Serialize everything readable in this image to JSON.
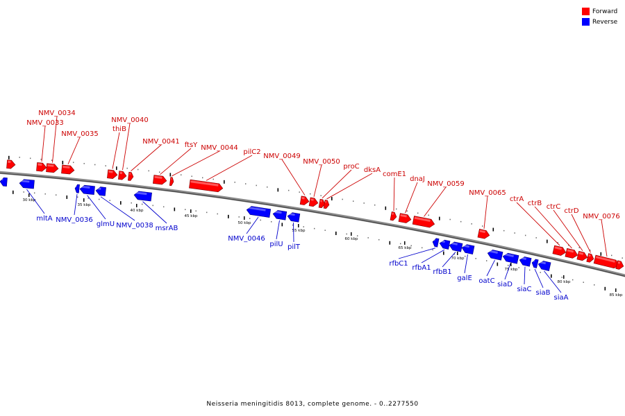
{
  "title": "Neisseria meningitidis 8013, complete genome. - 0..2277550",
  "legend": {
    "forward": {
      "label": "Forward",
      "color": "#ff0000"
    },
    "reverse": {
      "label": "Reverse",
      "color": "#0000ff"
    }
  },
  "colors": {
    "forward_label": "#cc0000",
    "reverse_label": "#0000cc",
    "backbone": "#555555"
  },
  "scale_labels": [
    "30 kbp",
    "35 kbp",
    "40 kbp",
    "45 kbp",
    "50 kbp",
    "55 kbp",
    "60 kbp",
    "65 kbp",
    "70 kbp",
    "75 kbp",
    "80 kbp",
    "85 kbp"
  ],
  "forward_genes": [
    "NMV_0034",
    "NMV_0033",
    "NMV_0035",
    "thiB",
    "NMV_0040",
    "NMV_0041",
    "ftsY",
    "NMV_0044",
    "pilC2",
    "NMV_0049",
    "NMV_0050",
    "proC",
    "dksA",
    "comE1",
    "dnaJ",
    "NMV_0059",
    "NMV_0065",
    "ctrA",
    "ctrB",
    "ctrC",
    "ctrD",
    "NMV_0076"
  ],
  "reverse_genes": [
    "mltA",
    "NMV_0036",
    "glmU",
    "NMV_0038",
    "msrAB",
    "NMV_0046",
    "pilU",
    "pilT",
    "rfbC1",
    "rfbA1",
    "rfbB1",
    "galE",
    "oatC",
    "siaD",
    "siaC",
    "siaB",
    "siaA"
  ]
}
